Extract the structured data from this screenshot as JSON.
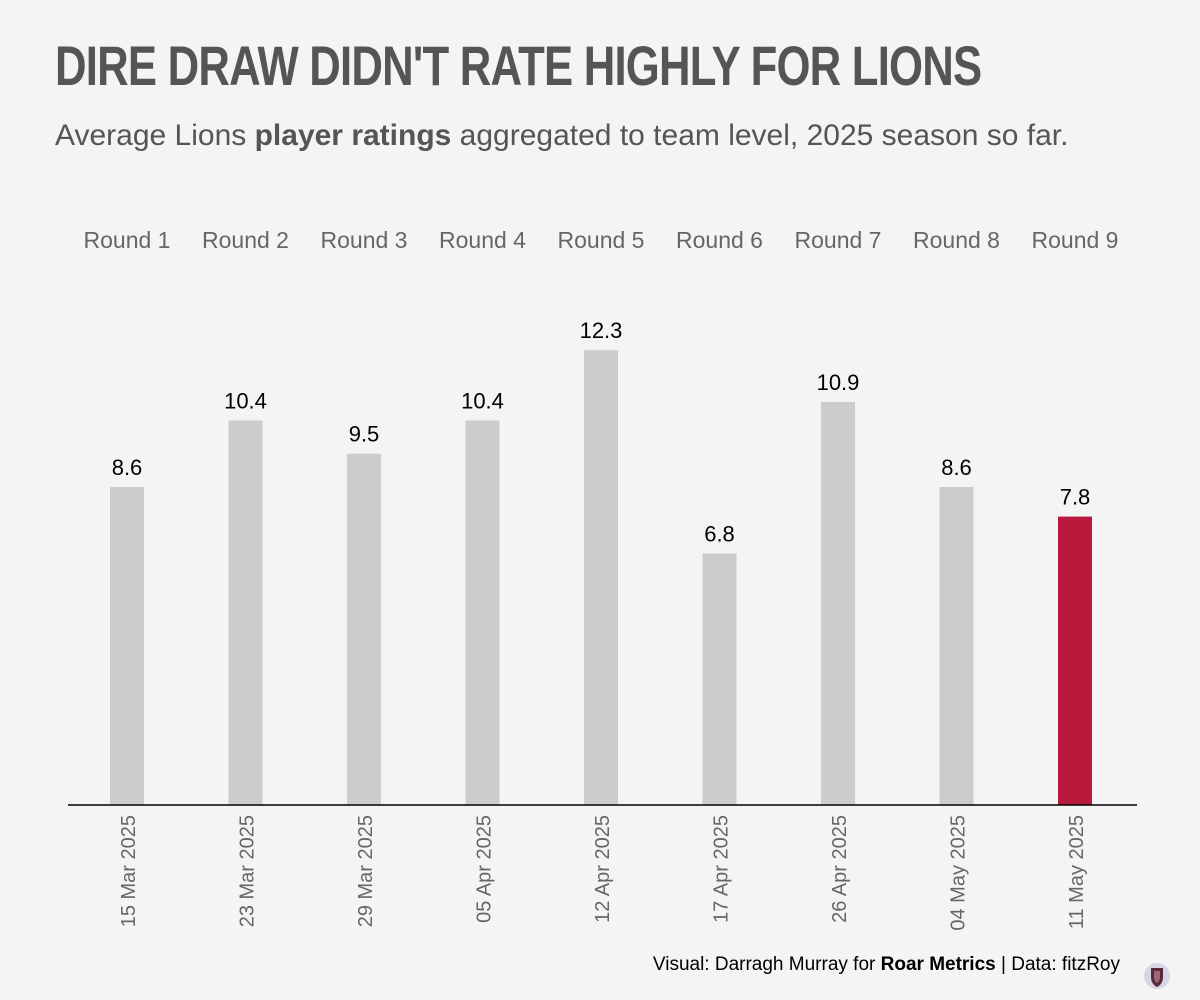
{
  "header": {
    "title": "DIRE DRAW DIDN'T RATE HIGHLY FOR LIONS",
    "subtitle_prefix": "Average Lions ",
    "subtitle_bold": "player ratings",
    "subtitle_suffix": " aggregated to team level, 2025 season so far."
  },
  "caption": {
    "prefix": "Visual: Darragh Murray for ",
    "bold": "Roar Metrics",
    "suffix": " | Data: fitzRoy"
  },
  "logo": {
    "icon": "roar-metrics-logo-icon"
  },
  "chart_data": {
    "type": "bar",
    "rounds": [
      "Round 1",
      "Round 2",
      "Round 3",
      "Round 4",
      "Round 5",
      "Round 6",
      "Round 7",
      "Round 8",
      "Round 9"
    ],
    "categories": [
      "15 Mar 2025",
      "23 Mar 2025",
      "29 Mar 2025",
      "05 Apr 2025",
      "12 Apr 2025",
      "17 Apr 2025",
      "26 Apr 2025",
      "04 May 2025",
      "11 May 2025"
    ],
    "values": [
      8.6,
      10.4,
      9.5,
      10.4,
      12.3,
      6.8,
      10.9,
      8.6,
      7.8
    ],
    "value_labels": [
      "8.6",
      "10.4",
      "9.5",
      "10.4",
      "12.3",
      "6.8",
      "10.9",
      "8.6",
      "7.8"
    ],
    "highlight_index": 8,
    "ylim": [
      0,
      12.9
    ],
    "grid": false,
    "colors": {
      "bar": "#cccccc",
      "highlight": "#b8193c",
      "baseline": "#000000",
      "round_label": "#666666",
      "date_label": "#666666"
    }
  }
}
